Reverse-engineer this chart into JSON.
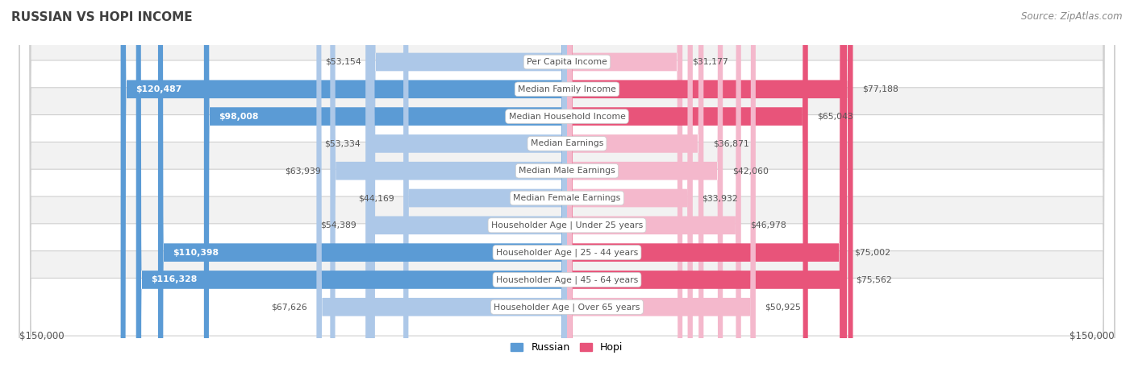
{
  "title": "RUSSIAN VS HOPI INCOME",
  "source": "Source: ZipAtlas.com",
  "categories": [
    "Per Capita Income",
    "Median Family Income",
    "Median Household Income",
    "Median Earnings",
    "Median Male Earnings",
    "Median Female Earnings",
    "Householder Age | Under 25 years",
    "Householder Age | 25 - 44 years",
    "Householder Age | 45 - 64 years",
    "Householder Age | Over 65 years"
  ],
  "russian_values": [
    53154,
    120487,
    98008,
    53334,
    63939,
    44169,
    54389,
    110398,
    116328,
    67626
  ],
  "hopi_values": [
    31177,
    77188,
    65043,
    36871,
    42060,
    33932,
    46978,
    75002,
    75562,
    50925
  ],
  "russian_labels": [
    "$53,154",
    "$120,487",
    "$98,008",
    "$53,334",
    "$63,939",
    "$44,169",
    "$54,389",
    "$110,398",
    "$116,328",
    "$67,626"
  ],
  "hopi_labels": [
    "$31,177",
    "$77,188",
    "$65,043",
    "$36,871",
    "$42,060",
    "$33,932",
    "$46,978",
    "$75,002",
    "$75,562",
    "$50,925"
  ],
  "max_value": 150000,
  "russian_color_light": "#adc8e8",
  "russian_color_dark": "#5b9bd5",
  "hopi_color_light": "#f4b8cc",
  "hopi_color_dark": "#e8547a",
  "russian_threshold": 80000,
  "hopi_threshold": 65000,
  "russian_legend_color": "#5b9bd5",
  "hopi_legend_color": "#e8547a",
  "bg_color": "#ffffff",
  "row_color_even": "#f2f2f2",
  "row_color_odd": "#ffffff",
  "label_dark": "#555555",
  "label_white": "#ffffff",
  "title_color": "#404040",
  "source_color": "#888888",
  "row_edge_color": "#d0d0d0"
}
